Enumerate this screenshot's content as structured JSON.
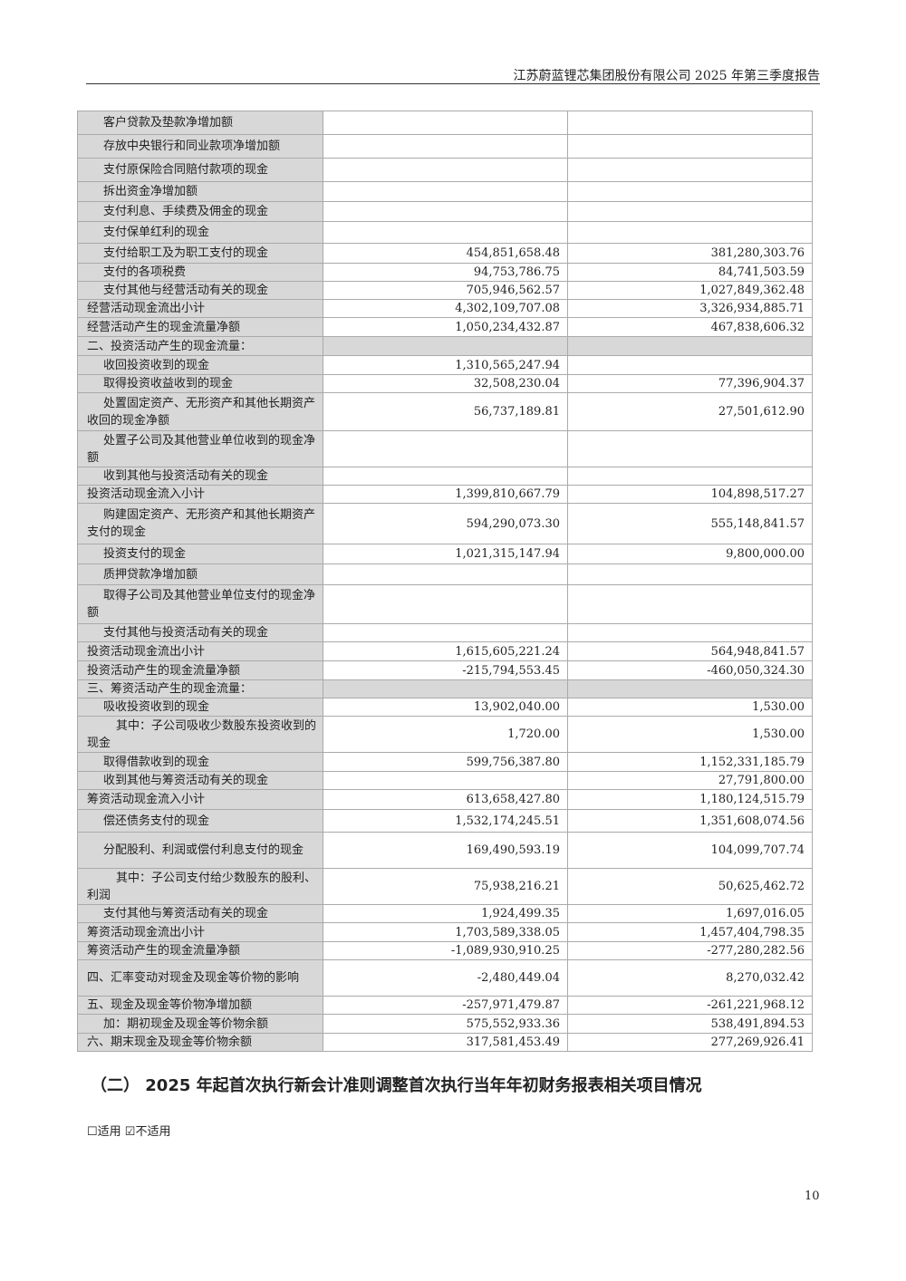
{
  "header": {
    "title": "江苏蔚蓝锂芯集团股份有限公司 2025 年第三季度报告"
  },
  "table": {
    "rows": [
      {
        "label": "客户贷款及垫款净增加额",
        "level": 1,
        "v1": "",
        "v2": ""
      },
      {
        "label": "存放中央银行和同业款项净增加额",
        "level": 1,
        "v1": "",
        "v2": ""
      },
      {
        "label": "支付原保险合同赔付款项的现金",
        "level": 1,
        "v1": "",
        "v2": ""
      },
      {
        "label": "拆出资金净增加额",
        "level": 1,
        "v1": "",
        "v2": ""
      },
      {
        "label": "支付利息、手续费及佣金的现金",
        "level": 1,
        "v1": "",
        "v2": ""
      },
      {
        "label": "支付保单红利的现金",
        "level": 1,
        "v1": "",
        "v2": ""
      },
      {
        "label": "支付给职工及为职工支付的现金",
        "level": 1,
        "v1": "454,851,658.48",
        "v2": "381,280,303.76"
      },
      {
        "label": "支付的各项税费",
        "level": 1,
        "v1": "94,753,786.75",
        "v2": "84,741,503.59"
      },
      {
        "label": "支付其他与经营活动有关的现金",
        "level": 1,
        "v1": "705,946,562.57",
        "v2": "1,027,849,362.48"
      },
      {
        "label": "经营活动现金流出小计",
        "level": 0,
        "v1": "4,302,109,707.08",
        "v2": "3,326,934,885.71"
      },
      {
        "label": "经营活动产生的现金流量净额",
        "level": 0,
        "v1": "1,050,234,432.87",
        "v2": "467,838,606.32"
      },
      {
        "label": "二、投资活动产生的现金流量：",
        "level": 0,
        "section": true,
        "v1": "",
        "v2": ""
      },
      {
        "label": "收回投资收到的现金",
        "level": 1,
        "v1": "1,310,565,247.94",
        "v2": ""
      },
      {
        "label": "取得投资收益收到的现金",
        "level": 1,
        "v1": "32,508,230.04",
        "v2": "77,396,904.37"
      },
      {
        "label": "处置固定资产、无形资产和其他长期资产收回的现金净额",
        "level": 1,
        "v1": "56,737,189.81",
        "v2": "27,501,612.90"
      },
      {
        "label": "处置子公司及其他营业单位收到的现金净额",
        "level": 1,
        "v1": "",
        "v2": ""
      },
      {
        "label": "收到其他与投资活动有关的现金",
        "level": 1,
        "v1": "",
        "v2": ""
      },
      {
        "label": "投资活动现金流入小计",
        "level": 0,
        "v1": "1,399,810,667.79",
        "v2": "104,898,517.27"
      },
      {
        "label": "购建固定资产、无形资产和其他长期资产支付的现金",
        "level": 1,
        "v1": "594,290,073.30",
        "v2": "555,148,841.57"
      },
      {
        "label": "投资支付的现金",
        "level": 1,
        "v1": "1,021,315,147.94",
        "v2": "9,800,000.00"
      },
      {
        "label": "质押贷款净增加额",
        "level": 1,
        "v1": "",
        "v2": ""
      },
      {
        "label": "取得子公司及其他营业单位支付的现金净额",
        "level": 1,
        "v1": "",
        "v2": ""
      },
      {
        "label": "支付其他与投资活动有关的现金",
        "level": 1,
        "v1": "",
        "v2": ""
      },
      {
        "label": "投资活动现金流出小计",
        "level": 0,
        "v1": "1,615,605,221.24",
        "v2": "564,948,841.57"
      },
      {
        "label": "投资活动产生的现金流量净额",
        "level": 0,
        "v1": "-215,794,553.45",
        "v2": "-460,050,324.30"
      },
      {
        "label": "三、筹资活动产生的现金流量：",
        "level": 0,
        "section": true,
        "v1": "",
        "v2": ""
      },
      {
        "label": "吸收投资收到的现金",
        "level": 1,
        "v1": "13,902,040.00",
        "v2": "1,530.00"
      },
      {
        "label": "其中：子公司吸收少数股东投资收到的现金",
        "level": 2,
        "v1": "1,720.00",
        "v2": "1,530.00"
      },
      {
        "label": "取得借款收到的现金",
        "level": 1,
        "v1": "599,756,387.80",
        "v2": "1,152,331,185.79"
      },
      {
        "label": "收到其他与筹资活动有关的现金",
        "level": 1,
        "v1": "",
        "v2": "27,791,800.00"
      },
      {
        "label": "筹资活动现金流入小计",
        "level": 0,
        "v1": "613,658,427.80",
        "v2": "1,180,124,515.79"
      },
      {
        "label": "偿还债务支付的现金",
        "level": 1,
        "v1": "1,532,174,245.51",
        "v2": "1,351,608,074.56"
      },
      {
        "label": "分配股利、利润或偿付利息支付的现金",
        "level": 1,
        "v1": "169,490,593.19",
        "v2": "104,099,707.74"
      },
      {
        "label": "其中：子公司支付给少数股东的股利、利润",
        "level": 2,
        "v1": "75,938,216.21",
        "v2": "50,625,462.72"
      },
      {
        "label": "支付其他与筹资活动有关的现金",
        "level": 1,
        "v1": "1,924,499.35",
        "v2": "1,697,016.05"
      },
      {
        "label": "筹资活动现金流出小计",
        "level": 0,
        "v1": "1,703,589,338.05",
        "v2": "1,457,404,798.35"
      },
      {
        "label": "筹资活动产生的现金流量净额",
        "level": 0,
        "v1": "-1,089,930,910.25",
        "v2": "-277,280,282.56"
      },
      {
        "label": "四、汇率变动对现金及现金等价物的影响",
        "level": 0,
        "v1": "-2,480,449.04",
        "v2": "8,270,032.42"
      },
      {
        "label": "五、现金及现金等价物净增加额",
        "level": 0,
        "v1": "-257,971,479.87",
        "v2": "-261,221,968.12"
      },
      {
        "label": "加：期初现金及现金等价物余额",
        "level": 1,
        "v1": "575,552,933.36",
        "v2": "538,491,894.53"
      },
      {
        "label": "六、期末现金及现金等价物余额",
        "level": 0,
        "v1": "317,581,453.49",
        "v2": "277,269,926.41"
      }
    ]
  },
  "section": {
    "title": "（二） 2025 年起首次执行新会计准则调整首次执行当年年初财务报表相关项目情况"
  },
  "options": {
    "applicable": "☐适用",
    "not_applicable": "☑不适用"
  },
  "page_number": "10"
}
